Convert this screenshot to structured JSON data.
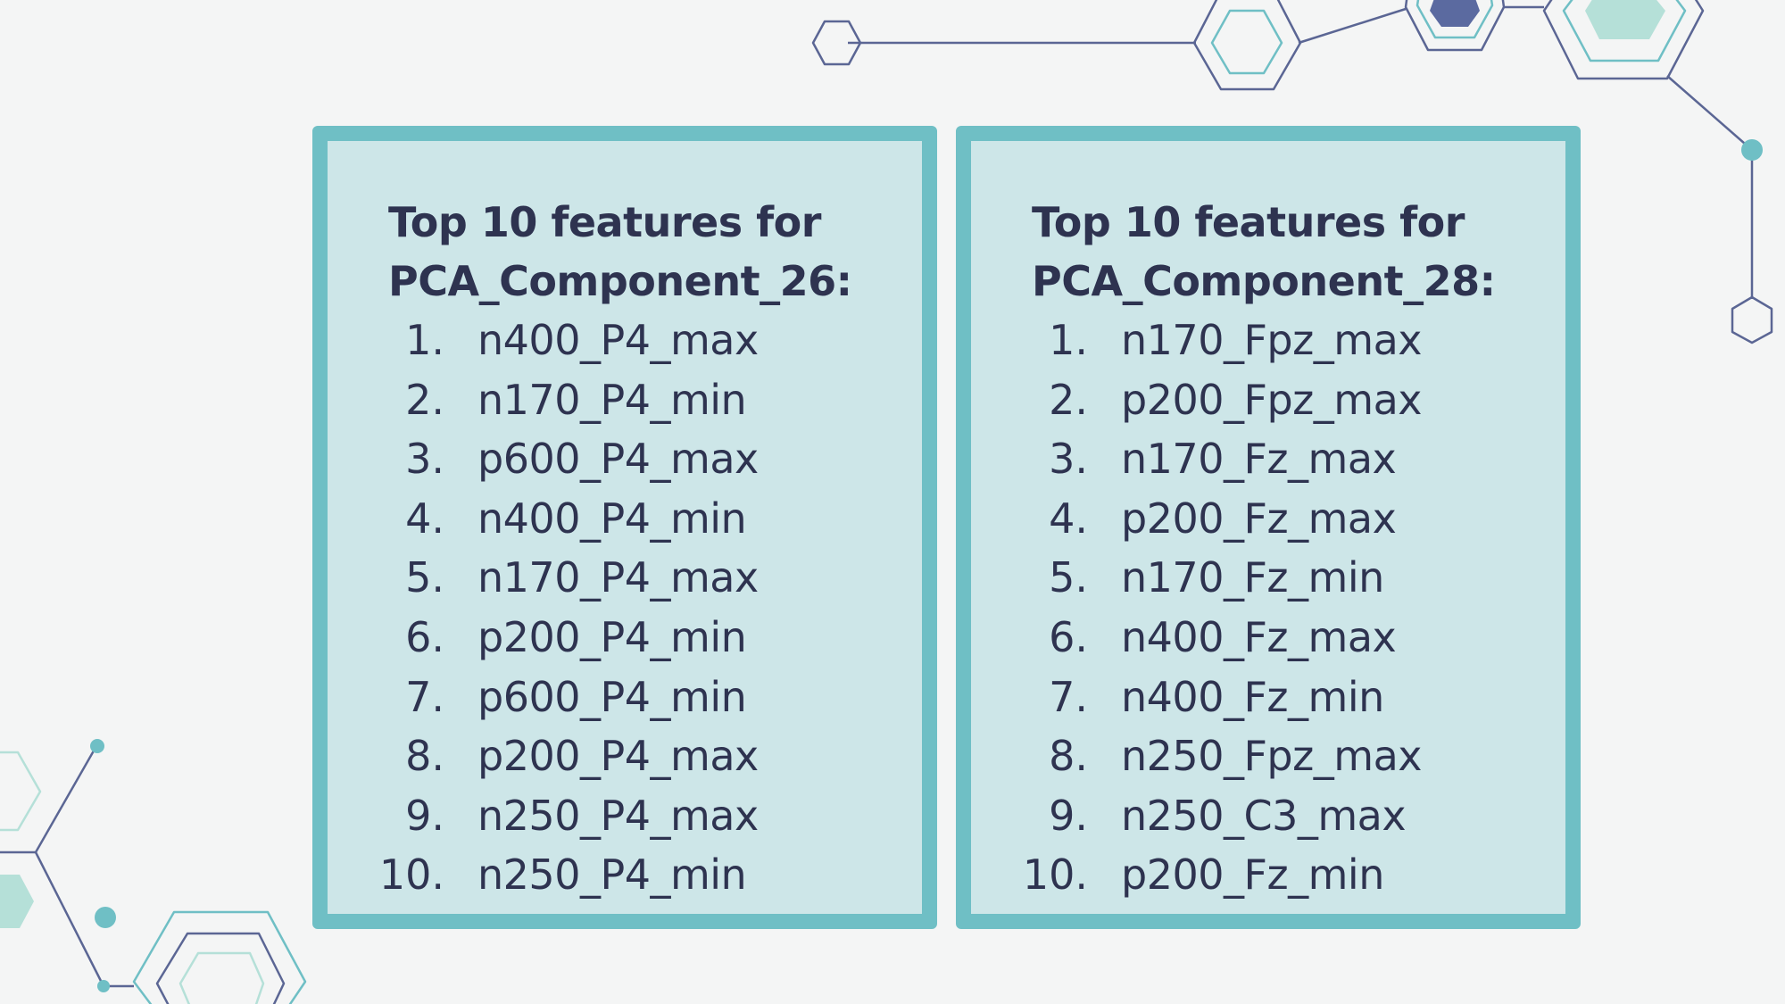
{
  "panels": [
    {
      "title_line1": "Top 10 features for",
      "title_line2": "PCA_Component_26:",
      "items": [
        {
          "num": "1.",
          "text": "n400_P4_max"
        },
        {
          "num": "2.",
          "text": "n170_P4_min"
        },
        {
          "num": "3.",
          "text": "p600_P4_max"
        },
        {
          "num": "4.",
          "text": "n400_P4_min"
        },
        {
          "num": "5.",
          "text": "n170_P4_max"
        },
        {
          "num": "6.",
          "text": "p200_P4_min"
        },
        {
          "num": "7.",
          "text": "p600_P4_min"
        },
        {
          "num": "8.",
          "text": "p200_P4_max"
        },
        {
          "num": "9.",
          "text": "n250_P4_max"
        },
        {
          "num": "10.",
          "text": "n250_P4_min"
        }
      ]
    },
    {
      "title_line1": "Top 10 features for",
      "title_line2": "PCA_Component_28:",
      "items": [
        {
          "num": "1.",
          "text": "n170_Fpz_max"
        },
        {
          "num": "2.",
          "text": "p200_Fpz_max"
        },
        {
          "num": "3.",
          "text": "n170_Fz_max"
        },
        {
          "num": "4.",
          "text": "p200_Fz_max"
        },
        {
          "num": "5.",
          "text": "n170_Fz_min"
        },
        {
          "num": "6.",
          "text": "n400_Fz_max"
        },
        {
          "num": "7.",
          "text": "n400_Fz_min"
        },
        {
          "num": "8.",
          "text": "n250_Fpz_max"
        },
        {
          "num": "9.",
          "text": "n250_C3_max"
        },
        {
          "num": "10.",
          "text": "p200_Fz_min"
        }
      ]
    }
  ],
  "colors": {
    "background": "#f4f5f5",
    "card_fill": "#cde6e8",
    "card_border": "#6fbfc5",
    "text": "#2e3350",
    "deco_line": "#5b6694",
    "deco_teal": "#6fbfc5",
    "deco_mint": "#b5e0d8",
    "deco_navy": "#5b6aa0"
  },
  "decorations": [
    "hexagon-network-top-right",
    "hexagon-network-bottom-left"
  ]
}
